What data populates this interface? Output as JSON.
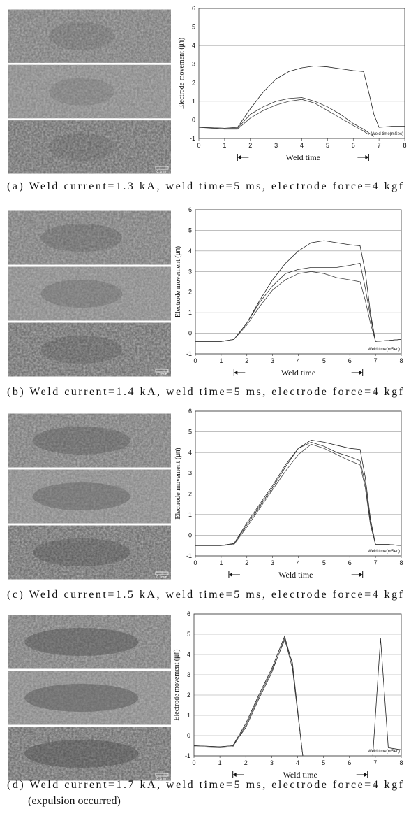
{
  "chart_data": [
    {
      "type": "line",
      "xlim": [
        0,
        8
      ],
      "ylim": [
        -1,
        6
      ],
      "xticks": [
        0,
        1,
        2,
        3,
        4,
        5,
        6,
        7,
        8
      ],
      "yticks": [
        -1,
        0,
        1,
        2,
        3,
        4,
        5,
        6
      ],
      "grid": true,
      "ylabel": "Electrode movement (㎛)",
      "xlabel": "Weld time",
      "annotation": "Weld time(mSec)",
      "caption": "(a) Weld current=1.3 kA, weld time=5 ms, electrode force=4 kgf",
      "scale_label": "0.1mm",
      "x": [
        0,
        1,
        1.5,
        2,
        2.5,
        3,
        3.5,
        4,
        4.5,
        5,
        5.5,
        6,
        6.4,
        6.6,
        6.8,
        7,
        7.5,
        8
      ],
      "series": [
        {
          "color": "#222",
          "values": [
            -0.4,
            -0.45,
            -0.4,
            0.6,
            1.5,
            2.2,
            2.6,
            2.8,
            2.9,
            2.85,
            2.75,
            2.65,
            2.6,
            1.5,
            0.3,
            -0.4,
            -0.35,
            -0.35
          ]
        },
        {
          "color": "#333",
          "values": [
            -0.4,
            -0.45,
            -0.45,
            0.3,
            0.7,
            1.0,
            1.15,
            1.2,
            1.0,
            0.7,
            0.3,
            -0.2,
            -0.5,
            -0.7,
            -0.9,
            null,
            null,
            null
          ]
        },
        {
          "color": "#444",
          "values": [
            -0.4,
            -0.5,
            -0.5,
            0.1,
            0.5,
            0.8,
            1.0,
            1.1,
            0.9,
            0.5,
            0.1,
            -0.3,
            -0.6,
            -0.8,
            null,
            null,
            null,
            null
          ]
        }
      ]
    },
    {
      "type": "line",
      "xlim": [
        0,
        8
      ],
      "ylim": [
        -1,
        6
      ],
      "xticks": [
        0,
        1,
        2,
        3,
        4,
        5,
        6,
        7,
        8
      ],
      "yticks": [
        -1,
        0,
        1,
        2,
        3,
        4,
        5,
        6
      ],
      "grid": true,
      "ylabel": "Electrode movement (㎛)",
      "xlabel": "Weld time",
      "annotation": "Weld time(mSec)",
      "caption": "(b) Weld current=1.4 kA, weld time=5 ms, electrode force=4 kgf",
      "scale_label": "0.1mm",
      "x": [
        0,
        1,
        1.5,
        2,
        2.5,
        3,
        3.5,
        4,
        4.5,
        5,
        5.5,
        6,
        6.4,
        6.6,
        6.8,
        7,
        7.5,
        8
      ],
      "series": [
        {
          "color": "#222",
          "values": [
            -0.4,
            -0.4,
            -0.3,
            0.5,
            1.6,
            2.6,
            3.4,
            4.0,
            4.4,
            4.5,
            4.4,
            4.3,
            4.25,
            3.0,
            1.0,
            -0.4,
            -0.35,
            -0.3
          ]
        },
        {
          "color": "#333",
          "values": [
            -0.4,
            -0.4,
            -0.3,
            0.5,
            1.5,
            2.3,
            2.9,
            3.1,
            3.2,
            3.2,
            3.2,
            3.3,
            3.4,
            2.2,
            0.8,
            -0.4,
            -0.35,
            -0.3
          ]
        },
        {
          "color": "#444",
          "values": [
            -0.4,
            -0.4,
            -0.3,
            0.4,
            1.3,
            2.1,
            2.6,
            2.9,
            3.0,
            2.9,
            2.7,
            2.6,
            2.5,
            1.6,
            0.5,
            -0.4,
            -0.35,
            -0.3
          ]
        }
      ]
    },
    {
      "type": "line",
      "xlim": [
        0,
        8
      ],
      "ylim": [
        -1,
        6
      ],
      "xticks": [
        0,
        1,
        2,
        3,
        4,
        5,
        6,
        7,
        8
      ],
      "yticks": [
        -1,
        0,
        1,
        2,
        3,
        4,
        5,
        6
      ],
      "grid": true,
      "ylabel": "Electrode movement (㎛)",
      "xlabel": "Weld time",
      "annotation": "Weld time(mSec)",
      "caption": "(c) Weld current=1.5 kA, weld time=5 ms, electrode force=4 kgf",
      "scale_label": "0.1mm",
      "x": [
        0,
        1,
        1.5,
        2,
        2.5,
        3,
        3.5,
        4,
        4.5,
        5,
        5.5,
        6,
        6.4,
        6.6,
        6.8,
        7,
        7.5,
        8
      ],
      "series": [
        {
          "color": "#222",
          "values": [
            -0.5,
            -0.5,
            -0.4,
            0.5,
            1.4,
            2.3,
            3.3,
            4.2,
            4.6,
            4.5,
            4.35,
            4.2,
            4.15,
            2.8,
            0.8,
            -0.45,
            -0.45,
            -0.5
          ]
        },
        {
          "color": "#333",
          "values": [
            -0.5,
            -0.5,
            -0.4,
            0.6,
            1.5,
            2.4,
            3.4,
            4.2,
            4.5,
            4.3,
            4.0,
            3.8,
            3.6,
            2.5,
            0.6,
            -0.45,
            -0.45,
            -0.5
          ]
        },
        {
          "color": "#444",
          "values": [
            -0.5,
            -0.5,
            -0.45,
            0.4,
            1.3,
            2.2,
            3.1,
            3.9,
            4.4,
            4.2,
            3.9,
            3.6,
            3.4,
            2.3,
            0.5,
            -0.45,
            -0.45,
            -0.5
          ]
        }
      ]
    },
    {
      "type": "line",
      "xlim": [
        0,
        8
      ],
      "ylim": [
        -1,
        6
      ],
      "xticks": [
        0,
        1,
        2,
        3,
        4,
        5,
        6,
        7,
        8
      ],
      "yticks": [
        -1,
        0,
        1,
        2,
        3,
        4,
        5,
        6
      ],
      "grid": true,
      "ylabel": "Electrode movement (㎛)",
      "xlabel": "Weld time",
      "annotation": "Weld time(mSec)",
      "caption": "(d) Weld current=1.7 kA, weld time=5 ms, electrode force=4 kgf",
      "caption_note": "(expulsion occurred)",
      "scale_label": "0.1mm",
      "x": [
        0,
        1,
        1.5,
        2,
        2.5,
        3,
        3.5,
        3.8,
        4.2,
        5.5,
        6.9,
        7.2,
        7.5,
        8
      ],
      "series": [
        {
          "color": "#222",
          "values": [
            -0.5,
            -0.55,
            -0.5,
            0.6,
            2.0,
            3.3,
            4.9,
            3.5,
            -1,
            null,
            -1,
            4.8,
            -0.6,
            -0.7
          ]
        },
        {
          "color": "#333",
          "values": [
            -0.5,
            -0.55,
            -0.5,
            0.4,
            1.8,
            3.1,
            4.8,
            3.3,
            -1,
            null,
            null,
            null,
            null,
            null
          ]
        },
        {
          "color": "#444",
          "values": [
            -0.55,
            -0.6,
            -0.55,
            0.5,
            1.9,
            3.2,
            4.7,
            3.6,
            -1,
            null,
            null,
            null,
            null,
            null
          ]
        }
      ]
    }
  ]
}
